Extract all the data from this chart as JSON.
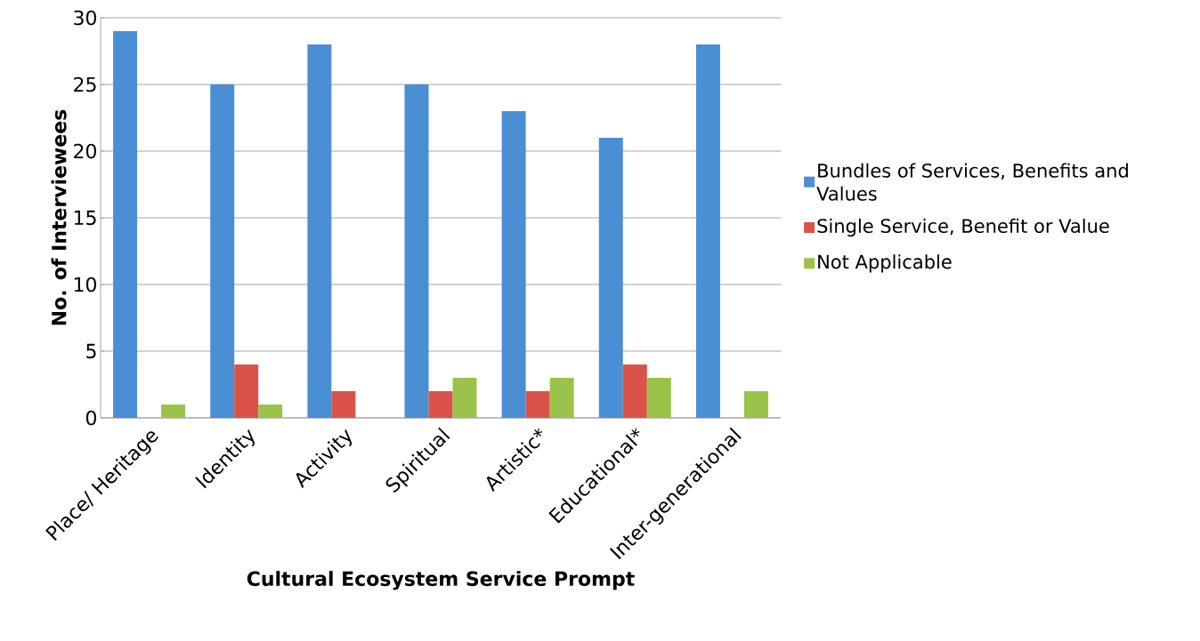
{
  "chart_data": {
    "type": "bar",
    "xlabel": "Cultural Ecosystem Service Prompt",
    "ylabel": "No. of Interviewees",
    "categories": [
      "Place/ Heritage",
      "Identity",
      "Activity",
      "Spiritual",
      "Artistic*",
      "Educational*",
      "Inter-generational"
    ],
    "series": [
      {
        "name": "Bundles of Services, Benefits and Values",
        "color": "#4a8fd4",
        "values": [
          29,
          25,
          28,
          25,
          23,
          21,
          28
        ]
      },
      {
        "name": "Single Service, Benefit or Value",
        "color": "#d9534a",
        "values": [
          0,
          4,
          2,
          2,
          2,
          4,
          0
        ]
      },
      {
        "name": "Not Applicable",
        "color": "#9bc24a",
        "values": [
          1,
          1,
          0,
          3,
          3,
          3,
          2
        ]
      }
    ],
    "ylim": [
      0,
      30
    ],
    "yticks": [
      0,
      5,
      10,
      15,
      20,
      25,
      30
    ],
    "grid": "y",
    "legend": "right"
  }
}
